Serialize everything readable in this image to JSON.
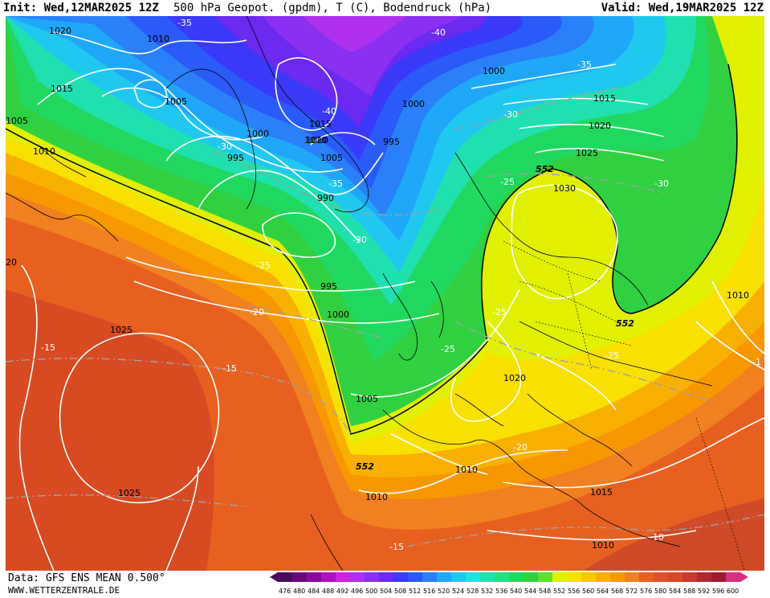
{
  "header": {
    "init": "Init: Wed,12MAR2025 12Z",
    "title": "500 hPa Geopot. (gpdm), T (C), Bodendruck (hPa)",
    "valid": "Valid: Wed,19MAR2025 12Z"
  },
  "footer": {
    "source": "Data: GFS ENS MEAN 0.500°",
    "website": "WWW.WETTERZENTRALE.DE"
  },
  "legend": {
    "values": [
      "476",
      "480",
      "484",
      "488",
      "492",
      "496",
      "500",
      "504",
      "508",
      "512",
      "516",
      "520",
      "524",
      "528",
      "532",
      "536",
      "540",
      "544",
      "548",
      "552",
      "556",
      "560",
      "564",
      "568",
      "572",
      "576",
      "580",
      "584",
      "588",
      "592",
      "596",
      "600"
    ],
    "colors": [
      "#4a0a5a",
      "#6a0a7a",
      "#8a0a9a",
      "#b010c0",
      "#d020e0",
      "#b030f0",
      "#8a30f0",
      "#6a2af0",
      "#3a3af8",
      "#2a5af8",
      "#2a80f8",
      "#20a8f8",
      "#20c8f0",
      "#20e0e0",
      "#20e0b0",
      "#20e080",
      "#20d860",
      "#30d040",
      "#60e030",
      "#e0f000",
      "#f8e000",
      "#f8c800",
      "#f8b000",
      "#f89800",
      "#f08020",
      "#e86020",
      "#e05028",
      "#d84828",
      "#c83830",
      "#b02830",
      "#a01830",
      "#d83080"
    ]
  },
  "isobars": [
    "1020",
    "1010",
    "1015",
    "1005",
    "1005",
    "1010",
    "1010",
    "1000",
    "995",
    "1000",
    "1015",
    "1010",
    "1005",
    "995",
    "990",
    "995",
    "1000",
    "1000",
    "1005",
    "1015",
    "1020",
    "1025",
    "1030",
    "1025",
    "1025",
    "1020",
    "1010",
    "1010",
    "1015",
    "1010",
    "1010",
    "20"
  ],
  "temps": [
    "-35",
    "-40",
    "-35",
    "-40",
    "-30",
    "-30",
    "-35",
    "-30",
    "-25",
    "-25",
    "-30",
    "-20",
    "-25",
    "-25",
    "-15",
    "-15",
    "-20",
    "-25",
    "-15",
    "-10",
    "-1"
  ],
  "geo552": [
    "552",
    "552",
    "552"
  ]
}
